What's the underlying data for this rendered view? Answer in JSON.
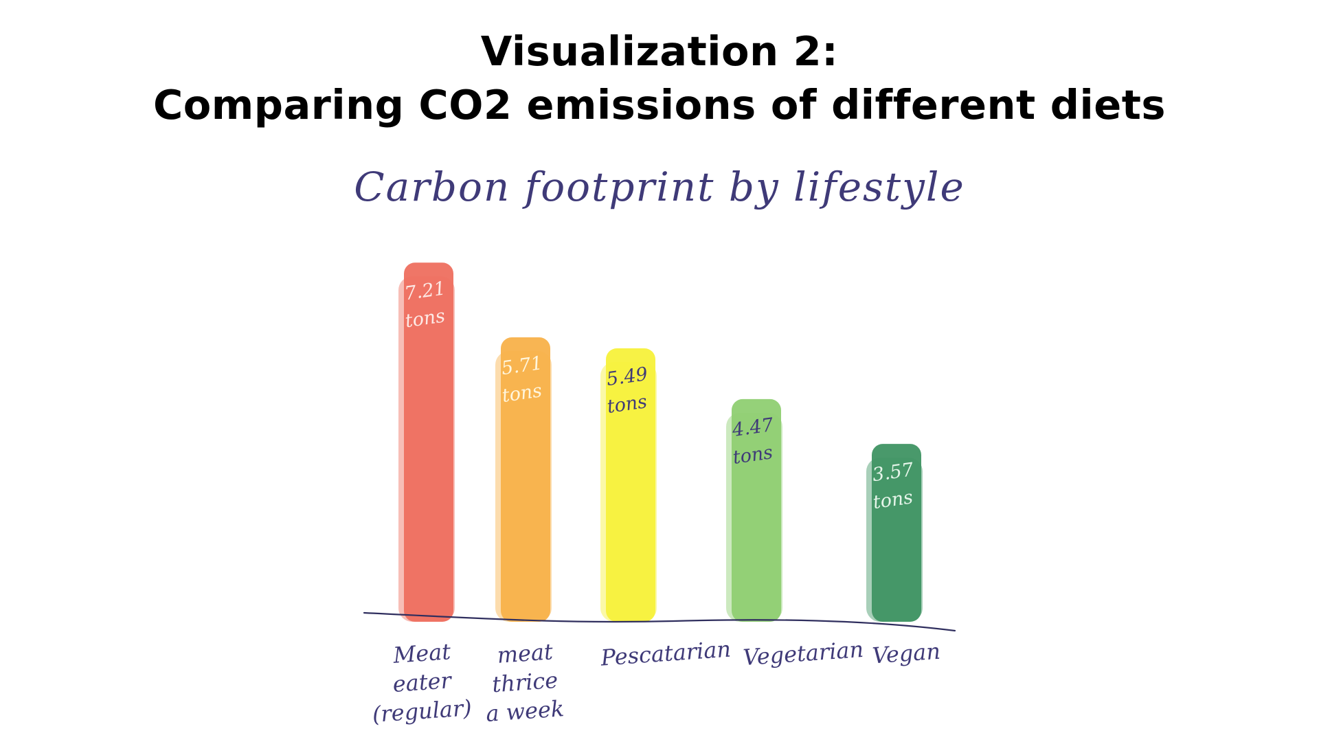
{
  "headline": {
    "line1": "Visualization 2:",
    "line2": "Comparing CO2 emissions of different diets"
  },
  "chart_data": {
    "type": "bar",
    "title": "Carbon footprint by lifestyle",
    "categories": [
      [
        "Meat",
        "eater",
        "(regular)"
      ],
      [
        "meat",
        "thrice",
        "a week"
      ],
      [
        "Pescatarian"
      ],
      [
        "Vegetarian"
      ],
      [
        "Vegan"
      ]
    ],
    "values": [
      7.21,
      5.71,
      5.49,
      4.47,
      3.57
    ],
    "value_labels": [
      [
        "7.21",
        "tons"
      ],
      [
        "5.71",
        "tons"
      ],
      [
        "5.49",
        "tons"
      ],
      [
        "4.47",
        "tons"
      ],
      [
        "3.57",
        "tons"
      ]
    ],
    "colors": [
      "#ee6f5f",
      "#f8b14a",
      "#f7f13b",
      "#8fcf72",
      "#3f9463"
    ],
    "grid": false,
    "ylim": [
      0,
      8
    ]
  }
}
